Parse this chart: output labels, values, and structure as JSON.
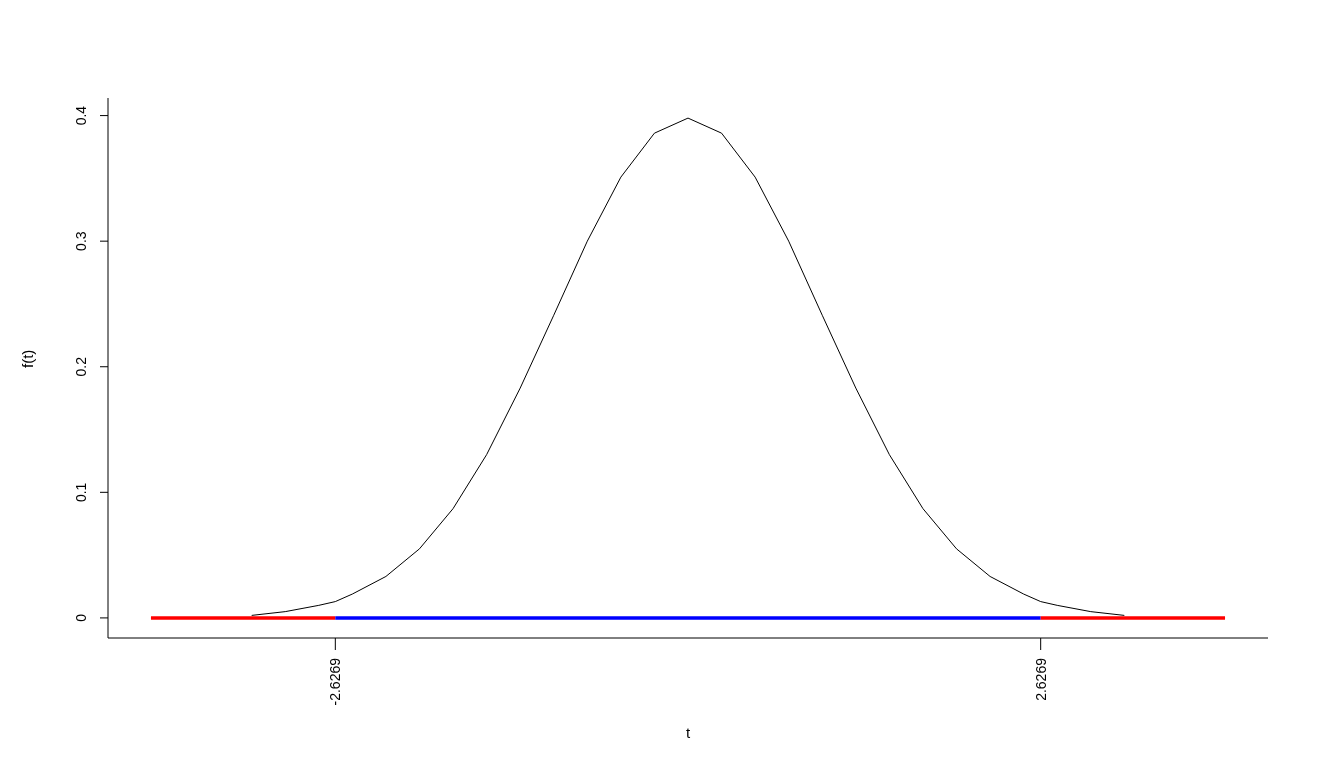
{
  "chart_data": {
    "type": "line",
    "xlabel": "t",
    "ylabel": "f(t)",
    "xlim": [
      -4.32,
      4.32
    ],
    "ylim": [
      -0.016,
      0.414
    ],
    "xticks": [
      -2.6269,
      2.6269
    ],
    "yticks": [
      0,
      0.1,
      0.2,
      0.3,
      0.4
    ],
    "series": [
      {
        "color": "#000000",
        "x": [
          -3.25,
          -3,
          -2.75,
          -2.6269,
          -2.5,
          -2.25,
          -2,
          -1.75,
          -1.5,
          -1.25,
          -1,
          -0.75,
          -0.5,
          -0.25,
          0,
          0.25,
          0.5,
          0.75,
          1,
          1.25,
          1.5,
          1.75,
          2,
          2.25,
          2.5,
          2.6269,
          2.75,
          3,
          3.25
        ],
        "values": [
          0.002,
          0.005,
          0.01,
          0.013,
          0.019,
          0.033,
          0.055,
          0.087,
          0.13,
          0.183,
          0.241,
          0.3,
          0.351,
          0.386,
          0.398,
          0.386,
          0.351,
          0.3,
          0.241,
          0.183,
          0.13,
          0.087,
          0.055,
          0.033,
          0.019,
          0.013,
          0.01,
          0.005,
          0.002
        ]
      },
      {
        "color": "#ff0000",
        "x": [
          -4,
          -2.6269
        ],
        "values": [
          0,
          0
        ]
      },
      {
        "color": "#0000ff",
        "x": [
          -2.6269,
          2.6269
        ],
        "values": [
          0,
          0
        ]
      },
      {
        "color": "#ff0000",
        "x": [
          2.6269,
          4
        ],
        "values": [
          0,
          0
        ]
      }
    ]
  }
}
